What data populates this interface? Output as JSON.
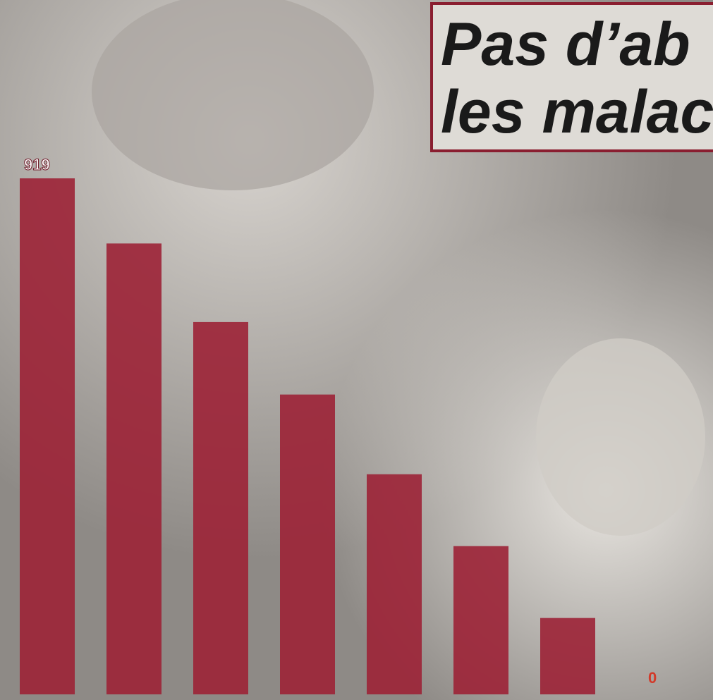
{
  "chart_data": {
    "type": "bar",
    "title_lines": [
      "Pas d’ab",
      "les malac"
    ],
    "categories": [
      null,
      null,
      null,
      null,
      null,
      null,
      null,
      null
    ],
    "values": [
      919,
      803,
      663,
      534,
      392,
      264,
      136,
      0
    ],
    "color": "#9c2236"
  }
}
